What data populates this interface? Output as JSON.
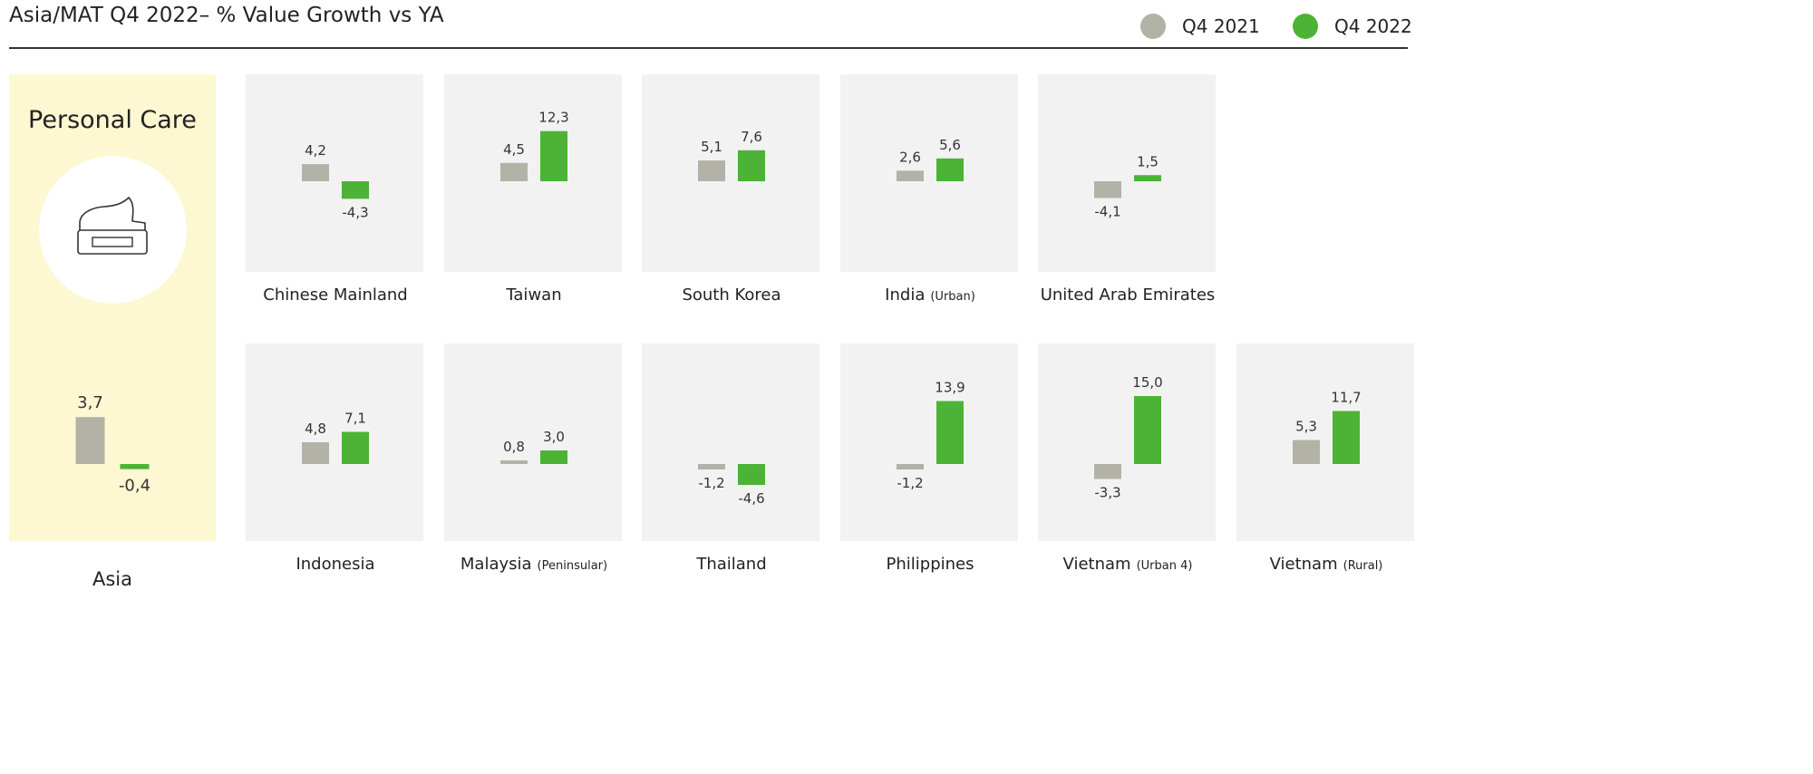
{
  "header": {
    "title": "Asia/MAT Q4 2022– % Value Growth vs YA"
  },
  "legend": [
    {
      "label": "Q4 2021",
      "color": "#b3b2a6"
    },
    {
      "label": "Q4 2022",
      "color": "#4cb336"
    }
  ],
  "colors": {
    "q4_2021": "#b3b2a6",
    "q4_2022": "#4cb336",
    "asia_panel": "#fdf7d2",
    "country_panel": "#f2f2f2"
  },
  "asia_card": {
    "category": "Personal Care",
    "icon": "cream-jar-icon",
    "name": "Asia"
  },
  "chart_data": {
    "type": "bar",
    "title": "Asia/MAT Q4 2022– % Value Growth vs YA",
    "series": [
      {
        "name": "Q4 2021"
      },
      {
        "name": "Q4 2022"
      }
    ],
    "regions": [
      {
        "name": "Asia",
        "note": "",
        "q4_2021": 3.7,
        "q4_2022": -0.4,
        "q4_2021_label": "3,7",
        "q4_2022_label": "-0,4"
      },
      {
        "name": "Chinese Mainland",
        "note": "",
        "q4_2021": 4.2,
        "q4_2022": -4.3,
        "q4_2021_label": "4,2",
        "q4_2022_label": "-4,3"
      },
      {
        "name": "Taiwan",
        "note": "",
        "q4_2021": 4.5,
        "q4_2022": 12.3,
        "q4_2021_label": "4,5",
        "q4_2022_label": "12,3"
      },
      {
        "name": "South Korea",
        "note": "",
        "q4_2021": 5.1,
        "q4_2022": 7.6,
        "q4_2021_label": "5,1",
        "q4_2022_label": "7,6"
      },
      {
        "name": "India",
        "note": "(Urban)",
        "q4_2021": 2.6,
        "q4_2022": 5.6,
        "q4_2021_label": "2,6",
        "q4_2022_label": "5,6"
      },
      {
        "name": "United Arab Emirates",
        "note": "",
        "q4_2021": -4.1,
        "q4_2022": 1.5,
        "q4_2021_label": "-4,1",
        "q4_2022_label": "1,5"
      },
      {
        "name": "Indonesia",
        "note": "",
        "q4_2021": 4.8,
        "q4_2022": 7.1,
        "q4_2021_label": "4,8",
        "q4_2022_label": "7,1"
      },
      {
        "name": "Malaysia",
        "note": "(Peninsular)",
        "q4_2021": 0.8,
        "q4_2022": 3.0,
        "q4_2021_label": "0,8",
        "q4_2022_label": "3,0"
      },
      {
        "name": "Thailand",
        "note": "",
        "q4_2021": -1.2,
        "q4_2022": -4.6,
        "q4_2021_label": "-1,2",
        "q4_2022_label": "-4,6"
      },
      {
        "name": "Philippines",
        "note": "",
        "q4_2021": -1.2,
        "q4_2022": 13.9,
        "q4_2021_label": "-1,2",
        "q4_2022_label": "13,9"
      },
      {
        "name": "Vietnam",
        "note": "(Urban 4)",
        "q4_2021": -3.3,
        "q4_2022": 15.0,
        "q4_2021_label": "-3,3",
        "q4_2022_label": "15,0"
      },
      {
        "name": "Vietnam",
        "note": "(Rural)",
        "q4_2021": 5.3,
        "q4_2022": 11.7,
        "q4_2021_label": "5,3",
        "q4_2022_label": "11,7"
      }
    ]
  }
}
